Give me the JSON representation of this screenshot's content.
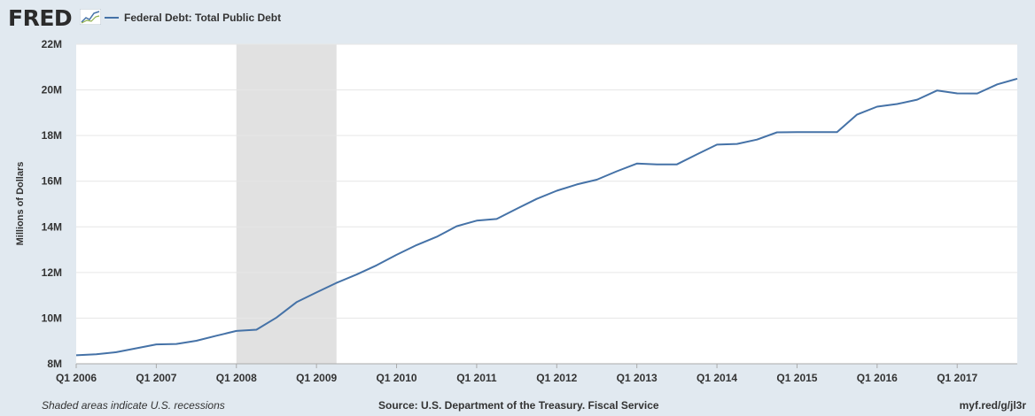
{
  "header": {
    "logo_text": "FRED",
    "legend_label": "Federal Debt: Total Public Debt",
    "series_color": "#4572a7"
  },
  "footer": {
    "left": "Shaded areas indicate U.S. recessions",
    "middle": "Source: U.S. Department of the Treasury. Fiscal Service",
    "right": "myf.red/g/jl3r"
  },
  "chart_data": {
    "type": "line",
    "title": "",
    "xlabel": "",
    "ylabel": "Millions of Dollars",
    "ylim": [
      8000000,
      22000000
    ],
    "yticks": [
      8000000,
      10000000,
      12000000,
      14000000,
      16000000,
      18000000,
      20000000,
      22000000
    ],
    "ytick_labels": [
      "8M",
      "10M",
      "12M",
      "14M",
      "16M",
      "18M",
      "20M",
      "22M"
    ],
    "xticks": [
      "Q1 2006",
      "Q1 2007",
      "Q1 2008",
      "Q1 2009",
      "Q1 2010",
      "Q1 2011",
      "Q1 2012",
      "Q1 2013",
      "Q1 2014",
      "Q1 2015",
      "Q1 2016",
      "Q1 2017"
    ],
    "xlim": [
      "Q1 2006",
      "Q4 2017"
    ],
    "grid": true,
    "recession_shading": {
      "start": "Q1 2008",
      "end": "Q2 2009",
      "color": "#e1e1e1"
    },
    "x": [
      "Q1 2006",
      "Q2 2006",
      "Q3 2006",
      "Q4 2006",
      "Q1 2007",
      "Q2 2007",
      "Q3 2007",
      "Q4 2007",
      "Q1 2008",
      "Q2 2008",
      "Q3 2008",
      "Q4 2008",
      "Q1 2009",
      "Q2 2009",
      "Q3 2009",
      "Q4 2009",
      "Q1 2010",
      "Q2 2010",
      "Q3 2010",
      "Q4 2010",
      "Q1 2011",
      "Q2 2011",
      "Q3 2011",
      "Q4 2011",
      "Q1 2012",
      "Q2 2012",
      "Q3 2012",
      "Q4 2012",
      "Q1 2013",
      "Q2 2013",
      "Q3 2013",
      "Q4 2013",
      "Q1 2014",
      "Q2 2014",
      "Q3 2014",
      "Q4 2014",
      "Q1 2015",
      "Q2 2015",
      "Q3 2015",
      "Q4 2015",
      "Q1 2016",
      "Q2 2016",
      "Q3 2016",
      "Q4 2016",
      "Q1 2017",
      "Q2 2017",
      "Q3 2017",
      "Q4 2017"
    ],
    "series": [
      {
        "name": "Federal Debt: Total Public Debt",
        "color": "#4572a7",
        "values": [
          8371000,
          8420000,
          8507000,
          8680000,
          8849000,
          8868000,
          9008000,
          9229000,
          9437000,
          9492000,
          10025000,
          10700000,
          11127000,
          11545000,
          11910000,
          12311000,
          12773000,
          13202000,
          13562000,
          14025000,
          14270000,
          14343000,
          14790000,
          15223000,
          15582000,
          15856000,
          16066000,
          16433000,
          16771000,
          16738000,
          16738000,
          17175000,
          17602000,
          17633000,
          17824000,
          18141000,
          18152000,
          18152000,
          18151000,
          18922000,
          19264000,
          19382000,
          19573000,
          19977000,
          19846000,
          19845000,
          20245000,
          20493000
        ]
      }
    ]
  }
}
